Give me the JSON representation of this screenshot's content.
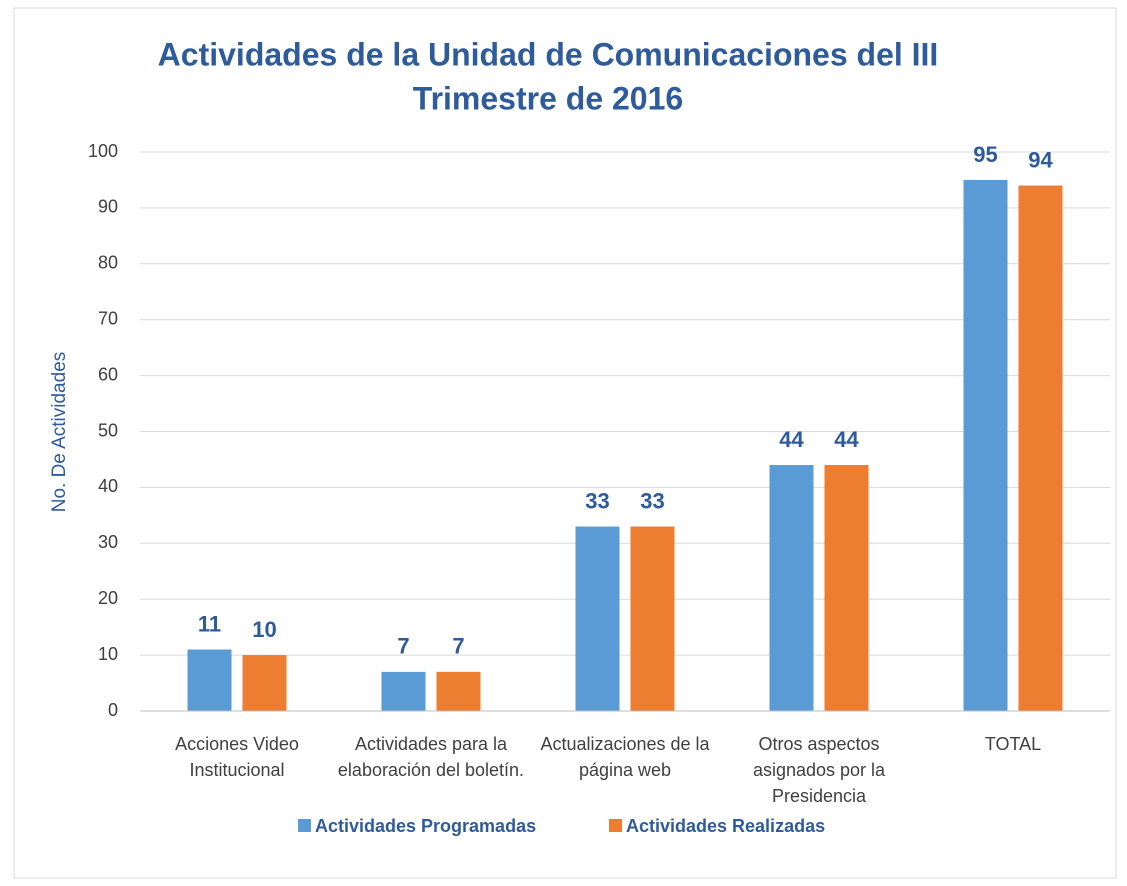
{
  "chart_data": {
    "type": "bar",
    "title": "Actividades de la Unidad de Comunicaciones del III Trimestre de 2016",
    "ylabel": "No. De Actividades",
    "categories": [
      "Acciones Video Institucional",
      "Actividades para la elaboración del boletín.",
      "Actualizaciones de la página web",
      "Otros aspectos asignados por la Presidencia",
      "TOTAL"
    ],
    "series": [
      {
        "name": "Actividades Programadas",
        "color": "#5b9bd5",
        "values": [
          11,
          7,
          33,
          44,
          95
        ]
      },
      {
        "name": "Actividades Realizadas",
        "color": "#ed7d31",
        "values": [
          10,
          7,
          33,
          44,
          94
        ]
      }
    ],
    "ylim": [
      0,
      100
    ],
    "yticks": [
      0,
      10,
      20,
      30,
      40,
      50,
      60,
      70,
      80,
      90,
      100
    ],
    "grid": true,
    "legend": "bottom"
  }
}
